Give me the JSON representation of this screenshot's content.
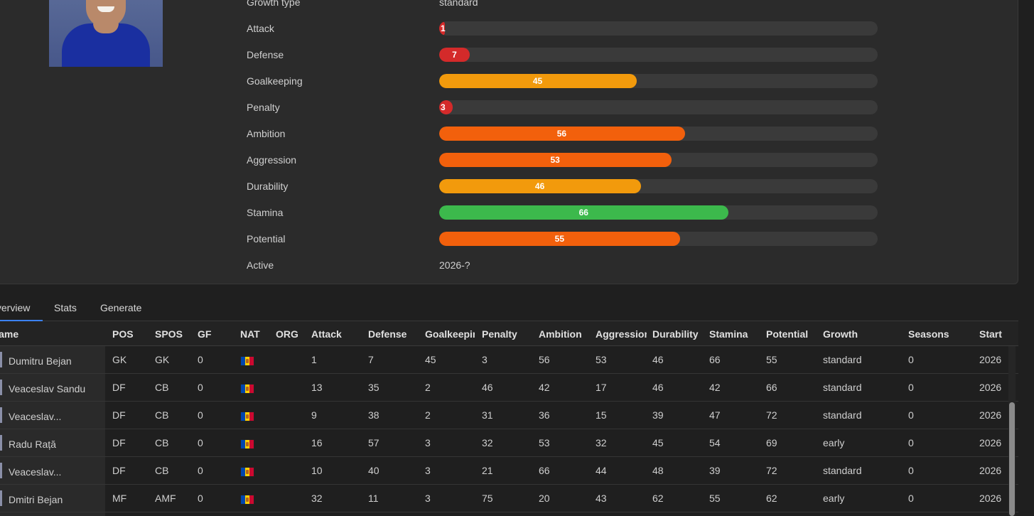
{
  "player": {
    "photo_alt": "player photo",
    "attributes": [
      {
        "label": "Growth type",
        "kind": "text",
        "value": "standard"
      },
      {
        "label": "Attack",
        "kind": "bar",
        "value": 1,
        "color": "#d42a2a"
      },
      {
        "label": "Defense",
        "kind": "bar",
        "value": 7,
        "color": "#d42a2a"
      },
      {
        "label": "Goalkeeping",
        "kind": "bar",
        "value": 45,
        "color": "#f29a0c"
      },
      {
        "label": "Penalty",
        "kind": "bar",
        "value": 3,
        "color": "#d42a2a"
      },
      {
        "label": "Ambition",
        "kind": "bar",
        "value": 56,
        "color": "#f2600c"
      },
      {
        "label": "Aggression",
        "kind": "bar",
        "value": 53,
        "color": "#f2600c"
      },
      {
        "label": "Durability",
        "kind": "bar",
        "value": 46,
        "color": "#f29a0c"
      },
      {
        "label": "Stamina",
        "kind": "bar",
        "value": 66,
        "color": "#3cb94c"
      },
      {
        "label": "Potential",
        "kind": "bar",
        "value": 55,
        "color": "#f2600c"
      },
      {
        "label": "Active",
        "kind": "text",
        "value": "2026-?"
      }
    ]
  },
  "tabs": [
    {
      "label": "Overview",
      "active": true
    },
    {
      "label": "Stats",
      "active": false
    },
    {
      "label": "Generate",
      "active": false
    }
  ],
  "table": {
    "columns": [
      "Name",
      "POS",
      "SPOS",
      "GF",
      "NAT",
      "ORG",
      "Attack",
      "Defense",
      "Goalkeeping",
      "Penalty",
      "Ambition",
      "Aggression",
      "Durability",
      "Stamina",
      "Potential",
      "Growth",
      "Seasons",
      "Start"
    ],
    "rows": [
      {
        "name": "Dumitru Bejan",
        "pos": "GK",
        "spos": "GK",
        "gf": "0",
        "org": "",
        "attack": "1",
        "defense": "7",
        "goalkeeping": "45",
        "penalty": "3",
        "ambition": "56",
        "aggression": "53",
        "durability": "46",
        "stamina": "66",
        "potential": "55",
        "growth": "standard",
        "seasons": "0",
        "start": "2026"
      },
      {
        "name": "Veaceslav Sandu",
        "pos": "DF",
        "spos": "CB",
        "gf": "0",
        "org": "",
        "attack": "13",
        "defense": "35",
        "goalkeeping": "2",
        "penalty": "46",
        "ambition": "42",
        "aggression": "17",
        "durability": "46",
        "stamina": "42",
        "potential": "66",
        "growth": "standard",
        "seasons": "0",
        "start": "2026"
      },
      {
        "name": "Veaceslav...",
        "pos": "DF",
        "spos": "CB",
        "gf": "0",
        "org": "",
        "attack": "9",
        "defense": "38",
        "goalkeeping": "2",
        "penalty": "31",
        "ambition": "36",
        "aggression": "15",
        "durability": "39",
        "stamina": "47",
        "potential": "72",
        "growth": "standard",
        "seasons": "0",
        "start": "2026"
      },
      {
        "name": "Radu Rață",
        "pos": "DF",
        "spos": "CB",
        "gf": "0",
        "org": "",
        "attack": "16",
        "defense": "57",
        "goalkeeping": "3",
        "penalty": "32",
        "ambition": "53",
        "aggression": "32",
        "durability": "45",
        "stamina": "54",
        "potential": "69",
        "growth": "early",
        "seasons": "0",
        "start": "2026"
      },
      {
        "name": "Veaceslav...",
        "pos": "DF",
        "spos": "CB",
        "gf": "0",
        "org": "",
        "attack": "10",
        "defense": "40",
        "goalkeeping": "3",
        "penalty": "21",
        "ambition": "66",
        "aggression": "44",
        "durability": "48",
        "stamina": "39",
        "potential": "72",
        "growth": "standard",
        "seasons": "0",
        "start": "2026"
      },
      {
        "name": "Dmitri Bejan",
        "pos": "MF",
        "spos": "AMF",
        "gf": "0",
        "org": "",
        "attack": "32",
        "defense": "11",
        "goalkeeping": "3",
        "penalty": "75",
        "ambition": "20",
        "aggression": "43",
        "durability": "62",
        "stamina": "55",
        "potential": "62",
        "growth": "early",
        "seasons": "0",
        "start": "2026"
      }
    ]
  },
  "colors": {
    "track": "#3a3a3a",
    "tab_active": "#3b82f6",
    "flag_nat": "moldova-flag"
  }
}
